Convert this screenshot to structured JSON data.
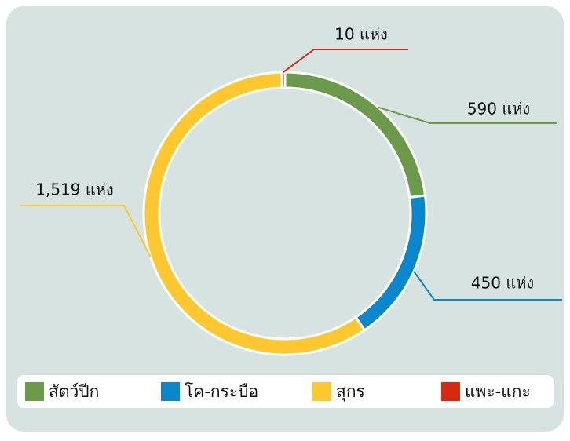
{
  "chart_data": {
    "type": "pie",
    "categories": [
      "สัตว์ปีก",
      "โค-กระบือ",
      "สุกร",
      "แพะ-แกะ"
    ],
    "values": [
      590,
      450,
      1519,
      10
    ],
    "value_labels": [
      "590 แห่ง",
      "450 แห่ง",
      "1,519 แห่ง",
      "10 แห่ง"
    ],
    "colors": [
      "#6a9a4a",
      "#0a86cc",
      "#fdc82f",
      "#d42a0f"
    ]
  }
}
